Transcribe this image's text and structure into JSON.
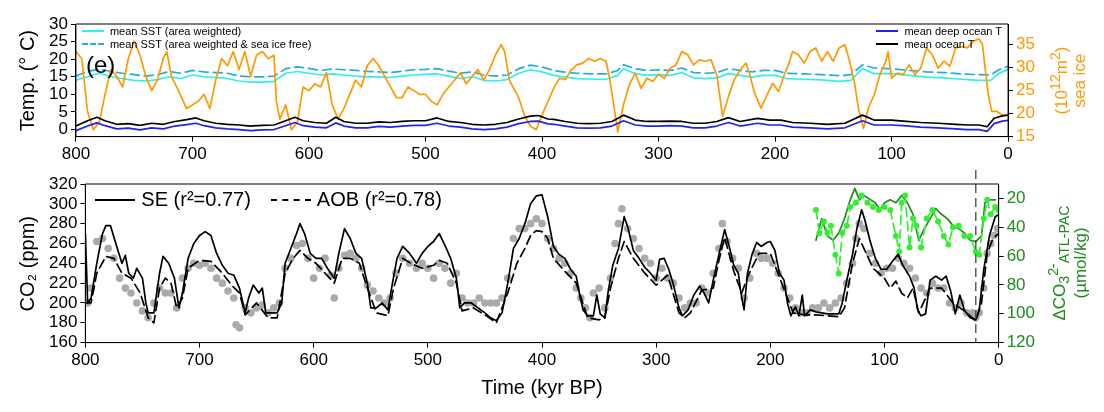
{
  "chart_data": [
    {
      "type": "line",
      "ylabel": "Temp. (° C)",
      "y2label": "(10$^{12}$m$^{2}$) sea ice",
      "annotations": [
        "(e)"
      ],
      "legend": "top",
      "xlim": [
        800,
        0
      ],
      "xticks": [
        800,
        700,
        600,
        500,
        400,
        300,
        200,
        100,
        0
      ],
      "ylim": [
        -2,
        30
      ],
      "yticks": [
        0,
        5,
        10,
        15,
        20,
        25,
        30
      ],
      "y2lim": [
        15,
        39.5
      ],
      "y2ticks": [
        15,
        20,
        25,
        30,
        35
      ],
      "series": [
        {
          "name": "mean SST (area weighted)",
          "color": "#33eeee",
          "x": [
            800,
            790,
            780,
            770,
            760,
            750,
            740,
            730,
            720,
            710,
            700,
            690,
            680,
            670,
            660,
            650,
            640,
            630,
            620,
            610,
            600,
            590,
            580,
            570,
            560,
            550,
            540,
            530,
            520,
            510,
            500,
            490,
            480,
            470,
            460,
            450,
            440,
            430,
            420,
            410,
            400,
            390,
            380,
            370,
            355,
            345,
            335,
            330,
            320,
            310,
            300,
            290,
            280,
            270,
            260,
            250,
            240,
            230,
            220,
            210,
            200,
            190,
            175,
            160,
            145,
            135,
            125,
            115,
            100,
            85,
            70,
            55,
            40,
            25,
            15,
            8,
            0
          ],
          "values": [
            14,
            15,
            16,
            15,
            14.5,
            14,
            13.8,
            14.2,
            15,
            14.5,
            15.5,
            15,
            14.8,
            14.5,
            13.8,
            13.5,
            13.5,
            13.7,
            16,
            16.5,
            16,
            15.5,
            15.8,
            15.5,
            15.2,
            15,
            15,
            14.8,
            15.2,
            15.5,
            15.7,
            15.8,
            15.2,
            14.5,
            15,
            14,
            13.8,
            14.2,
            16,
            17,
            16.4,
            15.4,
            14.9,
            14.5,
            14.3,
            14.3,
            15.4,
            17.3,
            15.9,
            15.4,
            15.6,
            15.4,
            16.2,
            14.7,
            14.5,
            14.7,
            15.9,
            15.4,
            14.9,
            15.4,
            15.4,
            14.5,
            14.3,
            14.1,
            13.7,
            14,
            17.3,
            15.9,
            15.9,
            15.4,
            14.9,
            14.7,
            14.3,
            14,
            14,
            15.9,
            17.1
          ]
        },
        {
          "name": "mean SST (area weighted & sea ice free)",
          "color": "#22aaee",
          "line_style": "dashed",
          "x": [
            800,
            790,
            780,
            770,
            760,
            750,
            740,
            730,
            720,
            710,
            700,
            690,
            680,
            670,
            660,
            650,
            640,
            630,
            620,
            610,
            600,
            590,
            580,
            570,
            560,
            550,
            540,
            530,
            520,
            510,
            500,
            490,
            480,
            470,
            460,
            450,
            440,
            430,
            420,
            410,
            400,
            390,
            380,
            370,
            355,
            345,
            335,
            330,
            320,
            310,
            300,
            290,
            280,
            270,
            260,
            250,
            240,
            230,
            220,
            210,
            200,
            190,
            175,
            160,
            145,
            135,
            125,
            115,
            100,
            85,
            70,
            55,
            40,
            25,
            15,
            8,
            0
          ],
          "values": [
            15.2,
            16.5,
            17.2,
            16.5,
            16,
            15.6,
            15.2,
            15.6,
            16.5,
            16,
            16.8,
            16.4,
            16.2,
            16,
            15.2,
            15,
            15,
            15.2,
            17.3,
            17.8,
            17.4,
            16.8,
            17.2,
            17,
            16.8,
            16.5,
            16.4,
            16.2,
            16.6,
            17,
            17.1,
            17.3,
            16.6,
            16,
            16.4,
            15.5,
            15.2,
            15.5,
            17.3,
            18.3,
            17.8,
            16.8,
            16.3,
            16,
            15.8,
            15.8,
            16.8,
            18.4,
            17.3,
            16.8,
            17,
            16.8,
            17.5,
            16.2,
            16,
            16.2,
            17.3,
            16.8,
            16.4,
            16.8,
            16.8,
            16,
            15.8,
            15.6,
            15.3,
            15.6,
            18.4,
            17.5,
            17.3,
            16.8,
            16.4,
            16.2,
            15.8,
            15.6,
            15.5,
            17,
            18
          ]
        },
        {
          "color": "#ff9900",
          "axis": "y2",
          "x": [
            800,
            795,
            790,
            785,
            780,
            775,
            770,
            765,
            760,
            755,
            750,
            745,
            740,
            735,
            730,
            725,
            722,
            718,
            712,
            705,
            700,
            695,
            690,
            685,
            680,
            675,
            670,
            665,
            660,
            655,
            650,
            645,
            640,
            635,
            630,
            628,
            625,
            620,
            615,
            610,
            605,
            600,
            595,
            590,
            585,
            580,
            575,
            570,
            565,
            560,
            555,
            550,
            545,
            540,
            535,
            530,
            525,
            520,
            515,
            510,
            505,
            500,
            495,
            490,
            485,
            480,
            475,
            470,
            465,
            460,
            455,
            450,
            445,
            440,
            435,
            432,
            428,
            420,
            415,
            410,
            405,
            400,
            390,
            385,
            380,
            375,
            370,
            365,
            360,
            355,
            350,
            345,
            342,
            338,
            335,
            330,
            325,
            320,
            315,
            310,
            305,
            300,
            295,
            290,
            285,
            280,
            275,
            270,
            265,
            260,
            255,
            250,
            245,
            240,
            235,
            230,
            225,
            222,
            218,
            212,
            207,
            202,
            197,
            192,
            188,
            185,
            180,
            175,
            170,
            165,
            160,
            155,
            150,
            145,
            140,
            136,
            132,
            128,
            124,
            120,
            115,
            110,
            105,
            103,
            100,
            95,
            90,
            85,
            80,
            75,
            70,
            65,
            60,
            55,
            50,
            45,
            40,
            35,
            30,
            25,
            22,
            20,
            17,
            14,
            10,
            5,
            0
          ],
          "values": [
            33.5,
            32,
            20.4,
            16.5,
            18.1,
            24.2,
            29.6,
            28.1,
            25.8,
            32,
            35.8,
            32.7,
            28.1,
            25,
            27.3,
            32,
            33.5,
            28.1,
            25,
            21.1,
            21.9,
            22.7,
            24.2,
            21.1,
            27.3,
            32,
            30.4,
            33.5,
            29.6,
            33.5,
            28.1,
            32.7,
            33.5,
            32,
            32.7,
            22.7,
            18.8,
            21.9,
            16.5,
            18.1,
            25.8,
            25,
            26.5,
            25.8,
            28.9,
            21.9,
            18.8,
            21.1,
            24.2,
            27.3,
            25.8,
            30.4,
            32,
            30.4,
            28.1,
            25.8,
            23.5,
            23.5,
            25.8,
            25,
            24.2,
            24.2,
            22.7,
            21.9,
            24.2,
            25.8,
            27.3,
            28.9,
            26.5,
            28.1,
            29.6,
            27.3,
            29.6,
            32.7,
            35,
            33.5,
            27.3,
            23.5,
            19.6,
            17.3,
            16.5,
            19.7,
            25.5,
            27.7,
            27.4,
            29.5,
            30.6,
            31,
            32,
            31.4,
            32,
            31.4,
            27.7,
            21.2,
            16,
            22,
            26.3,
            28.8,
            25.5,
            27.7,
            27,
            28.5,
            27.7,
            29.9,
            30.6,
            33.5,
            32.8,
            30.6,
            31.7,
            31.4,
            31.7,
            28.5,
            19.4,
            23.7,
            27.4,
            29.5,
            31,
            28.8,
            24.8,
            21.2,
            24,
            26.6,
            24.8,
            28.5,
            31,
            33.5,
            32.8,
            31,
            33.5,
            34.3,
            31.4,
            33.5,
            31.4,
            34.3,
            35,
            31.4,
            27,
            20.5,
            16.8,
            21.2,
            24,
            28.5,
            31.4,
            33.5,
            27.7,
            28.8,
            28.5,
            30.6,
            28.5,
            29.9,
            34.3,
            32.8,
            29.9,
            31.4,
            30.3,
            34.3,
            34.6,
            34.3,
            35.7,
            36.3,
            35,
            30.6,
            24.1,
            20.5,
            20.5,
            19.7,
            19.7
          ]
        },
        {
          "name": "mean deep ocean T",
          "color": "#2222ee",
          "x": [
            800,
            790,
            782,
            775,
            765,
            755,
            745,
            735,
            725,
            715,
            705,
            697,
            690,
            680,
            670,
            660,
            650,
            640,
            630,
            620,
            612,
            605,
            595,
            585,
            577,
            570,
            560,
            550,
            540,
            530,
            520,
            510,
            500,
            490,
            480,
            470,
            460,
            450,
            440,
            430,
            420,
            410,
            403,
            395,
            390,
            380,
            370,
            360,
            350,
            340,
            330,
            320,
            310,
            300,
            290,
            280,
            270,
            260,
            250,
            240,
            230,
            215,
            205,
            195,
            185,
            170,
            155,
            140,
            125,
            115,
            100,
            90,
            75,
            60,
            45,
            35,
            25,
            18,
            12,
            5,
            0
          ],
          "values": [
            -0.3,
            1,
            1.9,
            1.1,
            0.2,
            0.4,
            -0.1,
            0.5,
            0.2,
            1,
            1.4,
            1.8,
            1.1,
            0.5,
            0.2,
            0,
            -0.3,
            -0.1,
            0,
            1.1,
            2,
            1.1,
            0.7,
            0.5,
            1.9,
            1,
            0.5,
            0.5,
            0.9,
            0.7,
            1,
            1.2,
            1.2,
            1.8,
            1,
            0.7,
            0.2,
            0,
            0.2,
            0.7,
            1.7,
            2.3,
            2.4,
            1.6,
            1.5,
            1,
            0.5,
            0.4,
            0.5,
            1,
            2.5,
            1.3,
            1,
            1,
            1.1,
            1,
            0.5,
            0.5,
            1,
            2,
            1,
            1.8,
            1.3,
            1.3,
            0.7,
            0.5,
            0.2,
            0.5,
            2.5,
            1.3,
            1.3,
            1.1,
            0.7,
            0.5,
            0.2,
            0,
            0,
            -0.5,
            1.7,
            2.4,
            2.6
          ]
        },
        {
          "name": "mean ocean T",
          "color": "#000000",
          "x": [
            800,
            790,
            782,
            775,
            765,
            755,
            745,
            735,
            725,
            715,
            705,
            697,
            690,
            680,
            670,
            660,
            650,
            640,
            630,
            620,
            612,
            605,
            595,
            585,
            577,
            570,
            560,
            550,
            540,
            530,
            520,
            510,
            500,
            490,
            480,
            470,
            460,
            450,
            440,
            430,
            420,
            410,
            403,
            395,
            390,
            380,
            370,
            360,
            350,
            340,
            330,
            320,
            310,
            300,
            290,
            280,
            270,
            260,
            250,
            240,
            230,
            215,
            205,
            195,
            185,
            170,
            155,
            140,
            125,
            115,
            100,
            90,
            75,
            60,
            45,
            35,
            25,
            18,
            12,
            5,
            0
          ],
          "values": [
            1,
            2.5,
            3.5,
            2.5,
            1.5,
            1.7,
            1.2,
            1.8,
            1.5,
            2.3,
            2.8,
            3.3,
            2.5,
            1.8,
            1.5,
            1.3,
            1,
            1.2,
            1.3,
            2.5,
            3.5,
            2.5,
            2,
            1.8,
            3.5,
            2.3,
            1.8,
            1.8,
            2.2,
            2,
            2.3,
            2.5,
            2.5,
            3.3,
            2.3,
            2,
            1.5,
            1.3,
            1.5,
            2,
            3,
            3.8,
            4,
            3,
            2.9,
            2.3,
            1.8,
            1.7,
            1.8,
            2.3,
            4.1,
            2.7,
            2.3,
            2.3,
            2.4,
            2.3,
            1.8,
            1.8,
            2.3,
            3.4,
            2.3,
            3.2,
            2.7,
            2.7,
            2,
            1.8,
            1.5,
            1.8,
            4.1,
            2.7,
            2.7,
            2.4,
            2,
            1.8,
            1.5,
            1.3,
            1.3,
            0.8,
            3.2,
            3.9,
            4.1
          ]
        }
      ]
    },
    {
      "type": "line",
      "xlabel": "Time (kyr BP)",
      "ylabel": "CO₂ (ppm)",
      "y2label": "ΔCO$_{3}$$^{2-}$$_{ATL-PAC}$ (µmol/kg)",
      "legend": "top left",
      "xlim": [
        800,
        0
      ],
      "xticks": [
        800,
        700,
        600,
        500,
        400,
        300,
        200,
        100,
        0
      ],
      "ylim": [
        160,
        320
      ],
      "yticks": [
        160,
        180,
        200,
        220,
        240,
        260,
        280,
        300,
        320
      ],
      "y2lim": [
        120,
        10
      ],
      "y2ticks": [
        20,
        40,
        60,
        80,
        100,
        120
      ],
      "ref_lines": [
        {
          "axis": "x",
          "value": 20,
          "color": "#444444",
          "line_style": "dashed"
        }
      ],
      "series": [
        {
          "type": "scatter",
          "color": "#aaaaaa",
          "marker": "circle",
          "x": [
            798,
            795,
            790,
            785,
            780,
            775,
            770,
            765,
            760,
            755,
            750,
            745,
            740,
            735,
            730,
            725,
            720,
            715,
            710,
            705,
            700,
            695,
            690,
            685,
            680,
            675,
            670,
            668,
            665,
            660,
            655,
            650,
            645,
            640,
            635,
            630,
            625,
            620,
            615,
            610,
            605,
            600,
            595,
            590,
            585,
            582,
            578,
            573,
            568,
            563,
            558,
            553,
            548,
            543,
            538,
            533,
            528,
            522,
            516,
            510,
            505,
            500,
            495,
            490,
            485,
            480,
            475,
            470,
            465,
            460,
            455,
            450,
            445,
            440,
            435,
            430,
            425,
            420,
            415,
            410,
            405,
            400,
            395,
            390,
            385,
            380,
            375,
            370,
            366,
            362,
            358,
            355,
            350,
            345,
            340,
            336,
            333,
            330,
            325,
            320,
            315,
            310,
            305,
            300,
            295,
            290,
            285,
            280,
            275,
            270,
            265,
            260,
            255,
            250,
            245,
            242,
            238,
            233,
            228,
            223,
            218,
            212,
            208,
            203,
            198,
            193,
            188,
            183,
            178,
            173,
            168,
            163,
            158,
            153,
            148,
            143,
            138,
            133,
            128,
            125,
            122,
            118,
            113,
            108,
            103,
            98,
            93,
            88,
            83,
            78,
            73,
            68,
            63,
            58,
            53,
            48,
            43,
            38,
            33,
            28,
            23,
            20,
            17,
            13,
            10,
            7,
            4,
            1
          ],
          "values": [
            200,
            215,
            262,
            265,
            255,
            245,
            225,
            215,
            210,
            200,
            192,
            185,
            200,
            215,
            210,
            210,
            195,
            225,
            235,
            240,
            238,
            240,
            235,
            225,
            220,
            212,
            205,
            178,
            175,
            195,
            190,
            195,
            198,
            190,
            195,
            200,
            235,
            245,
            258,
            260,
            245,
            225,
            235,
            245,
            228,
            205,
            235,
            248,
            250,
            245,
            235,
            218,
            212,
            205,
            200,
            205,
            230,
            245,
            240,
            235,
            240,
            235,
            225,
            240,
            235,
            220,
            230,
            205,
            200,
            200,
            205,
            200,
            200,
            200,
            205,
            225,
            265,
            275,
            275,
            280,
            285,
            280,
            265,
            255,
            245,
            240,
            230,
            215,
            205,
            195,
            185,
            210,
            215,
            195,
            225,
            260,
            280,
            295,
            275,
            265,
            255,
            245,
            240,
            225,
            235,
            225,
            220,
            205,
            195,
            200,
            200,
            215,
            210,
            230,
            255,
            280,
            262,
            245,
            235,
            205,
            225,
            250,
            245,
            245,
            240,
            230,
            215,
            205,
            195,
            190,
            190,
            195,
            195,
            200,
            195,
            200,
            205,
            220,
            240,
            265,
            280,
            275,
            250,
            240,
            230,
            235,
            235,
            245,
            240,
            235,
            225,
            215,
            210,
            220,
            215,
            215,
            200,
            195,
            200,
            190,
            190,
            185,
            190,
            215,
            250,
            260,
            268,
            275
          ]
        },
        {
          "color": "#1e8c1e",
          "axis": "y2",
          "x": [
            160,
            155,
            150,
            145,
            140,
            135,
            130,
            126,
            122,
            118,
            112,
            108,
            104,
            100,
            95,
            90,
            85,
            80,
            75,
            70,
            65,
            60,
            55,
            50,
            45,
            40,
            35,
            30,
            25,
            20,
            15,
            12,
            8,
            3
          ],
          "values": [
            49,
            34,
            46,
            49,
            44,
            34,
            21,
            13,
            21,
            18,
            21,
            23,
            28,
            23,
            21,
            23,
            18,
            23,
            31,
            49,
            41,
            34,
            27,
            31,
            34,
            39,
            41,
            44,
            49,
            50,
            46,
            23,
            21,
            21
          ]
        },
        {
          "color": "#33ee33",
          "axis": "y2",
          "marker": "circle",
          "line_style": "dashed",
          "x": [
            160,
            157,
            153,
            150,
            147,
            143,
            140,
            137,
            133,
            130,
            125,
            120,
            115,
            110,
            105,
            100,
            95,
            90,
            87,
            85,
            82,
            78,
            75,
            72,
            68,
            63,
            58,
            53,
            48,
            44,
            40,
            35,
            30,
            25,
            20,
            17,
            13,
            10,
            7,
            3,
            0
          ],
          "values": [
            28,
            44,
            36,
            44,
            39,
            59,
            72,
            44,
            39,
            26,
            23,
            18,
            23,
            26,
            28,
            26,
            28,
            46,
            57,
            23,
            18,
            54,
            34,
            39,
            54,
            34,
            28,
            36,
            46,
            52,
            40,
            39,
            46,
            46,
            57,
            59,
            34,
            21,
            31,
            26,
            28
          ]
        },
        {
          "name": "SE (r²=0.77)",
          "color": "#000000",
          "x": [
            800,
            798,
            795,
            790,
            785,
            782,
            778,
            772,
            768,
            765,
            762,
            758,
            755,
            750,
            747,
            745,
            740,
            735,
            732,
            727,
            722,
            718,
            715,
            710,
            705,
            700,
            695,
            690,
            685,
            680,
            675,
            670,
            665,
            660,
            657,
            653,
            648,
            645,
            642,
            638,
            632,
            628,
            625,
            620,
            615,
            612,
            608,
            603,
            598,
            593,
            588,
            582,
            578,
            573,
            568,
            563,
            558,
            553,
            550,
            545,
            540,
            535,
            531,
            527,
            522,
            516,
            510,
            505,
            500,
            495,
            490,
            485,
            480,
            475,
            472,
            468,
            462,
            456,
            450,
            445,
            440,
            435,
            430,
            425,
            420,
            415,
            410,
            405,
            400,
            395,
            390,
            385,
            380,
            375,
            370,
            367,
            364,
            360,
            355,
            352,
            349,
            345,
            342,
            338,
            333,
            328,
            325,
            320,
            315,
            310,
            305,
            300,
            297,
            293,
            289,
            285,
            280,
            277,
            272,
            267,
            262,
            258,
            254,
            250,
            245,
            240,
            236,
            232,
            228,
            226,
            223,
            220,
            216,
            212,
            208,
            203,
            200,
            196,
            192,
            188,
            185,
            182,
            178,
            175,
            172,
            170,
            165,
            160,
            150,
            140,
            137,
            133,
            128,
            124,
            120,
            117,
            113,
            108,
            103,
            98,
            93,
            88,
            84,
            78,
            74,
            71,
            68,
            64,
            60,
            55,
            50,
            46,
            42,
            38,
            34,
            30,
            25,
            20,
            17,
            13,
            8,
            3,
            0
          ],
          "values": [
            270,
            200,
            205,
            240,
            270,
            278,
            278,
            255,
            240,
            248,
            230,
            225,
            235,
            225,
            200,
            190,
            190,
            230,
            247,
            240,
            225,
            195,
            210,
            245,
            260,
            268,
            272,
            268,
            250,
            238,
            230,
            228,
            215,
            190,
            205,
            218,
            210,
            215,
            190,
            190,
            190,
            200,
            240,
            255,
            270,
            280,
            270,
            250,
            245,
            245,
            235,
            225,
            250,
            275,
            265,
            250,
            245,
            220,
            195,
            195,
            200,
            193,
            220,
            245,
            257,
            250,
            240,
            250,
            257,
            262,
            270,
            258,
            245,
            225,
            195,
            200,
            200,
            195,
            190,
            185,
            182,
            190,
            220,
            255,
            265,
            280,
            300,
            308,
            309,
            287,
            257,
            249,
            245,
            234,
            227,
            208,
            193,
            187,
            187,
            208,
            189,
            185,
            212,
            238,
            255,
            287,
            277,
            253,
            245,
            236,
            230,
            223,
            244,
            245,
            234,
            219,
            195,
            187,
            193,
            208,
            217,
            210,
            200,
            223,
            249,
            274,
            257,
            238,
            230,
            212,
            193,
            230,
            249,
            261,
            257,
            261,
            262,
            253,
            230,
            223,
            200,
            187,
            196,
            187,
            208,
            187,
            193,
            191,
            189,
            189,
            200,
            223,
            249,
            276,
            294,
            283,
            264,
            245,
            234,
            234,
            242,
            249,
            238,
            227,
            215,
            193,
            187,
            189,
            223,
            227,
            223,
            227,
            212,
            189,
            208,
            193,
            185,
            183,
            193,
            234,
            268,
            287,
            289
          ]
        },
        {
          "name": "AOB (r²=0.78)",
          "color": "#000000",
          "line_style": "dashed",
          "x": [
            800,
            795,
            790,
            782,
            775,
            768,
            760,
            752,
            745,
            740,
            735,
            730,
            725,
            720,
            715,
            710,
            700,
            690,
            680,
            672,
            665,
            660,
            650,
            640,
            632,
            625,
            618,
            612,
            605,
            598,
            590,
            582,
            575,
            568,
            560,
            553,
            545,
            538,
            535,
            530,
            522,
            515,
            505,
            495,
            490,
            483,
            475,
            470,
            460,
            450,
            440,
            430,
            422,
            415,
            410,
            405,
            400,
            395,
            390,
            380,
            370,
            360,
            350,
            345,
            340,
            333,
            328,
            320,
            310,
            300,
            290,
            280,
            275,
            270,
            260,
            250,
            245,
            240,
            232,
            225,
            220,
            210,
            200,
            190,
            180,
            170,
            160,
            150,
            140,
            135,
            128,
            122,
            118,
            110,
            100,
            95,
            90,
            85,
            80,
            75,
            70,
            60,
            50,
            40,
            30,
            20,
            15,
            10,
            5,
            0
          ],
          "values": [
            200,
            200,
            230,
            247,
            245,
            230,
            225,
            210,
            185,
            180,
            215,
            225,
            220,
            195,
            205,
            235,
            243,
            242,
            230,
            218,
            210,
            188,
            200,
            185,
            185,
            230,
            245,
            253,
            245,
            240,
            230,
            220,
            245,
            245,
            240,
            215,
            190,
            188,
            187,
            215,
            245,
            240,
            235,
            238,
            243,
            240,
            220,
            192,
            195,
            188,
            180,
            210,
            240,
            255,
            268,
            273,
            272,
            265,
            245,
            232,
            220,
            185,
            183,
            185,
            215,
            245,
            262,
            245,
            230,
            218,
            228,
            190,
            185,
            190,
            213,
            215,
            243,
            266,
            232,
            210,
            226,
            250,
            250,
            220,
            190,
            188,
            188,
            187,
            186,
            195,
            240,
            265,
            255,
            235,
            225,
            215,
            222,
            210,
            205,
            215,
            190,
            215,
            215,
            200,
            192,
            182,
            200,
            250,
            265,
            270
          ]
        }
      ]
    }
  ]
}
